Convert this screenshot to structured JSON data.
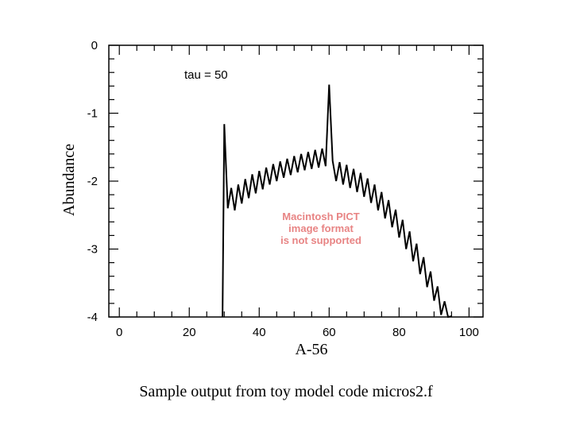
{
  "chart_data": {
    "type": "line",
    "title": "",
    "xlabel": "A-56",
    "ylabel": "Abundance",
    "xlim": [
      -3,
      104
    ],
    "ylim": [
      -4,
      0
    ],
    "x_ticks": [
      0,
      20,
      40,
      60,
      80,
      100
    ],
    "y_ticks": [
      0,
      -1,
      -2,
      -3,
      -4
    ],
    "grid": false,
    "annotation": "tau = 50",
    "series": [
      {
        "color": "#000000",
        "x": [
          29.5,
          30,
          31,
          32,
          33,
          34,
          35,
          36,
          37,
          38,
          39,
          40,
          41,
          42,
          43,
          44,
          45,
          46,
          47,
          48,
          49,
          50,
          51,
          52,
          53,
          54,
          55,
          56,
          57,
          58,
          59,
          60,
          61,
          62,
          63,
          64,
          65,
          66,
          67,
          68,
          69,
          70,
          71,
          72,
          73,
          74,
          75,
          76,
          77,
          78,
          79,
          80,
          81,
          82,
          83,
          84,
          85,
          86,
          87,
          88,
          89,
          90,
          91,
          92,
          93,
          94,
          95
        ],
        "y": [
          -4.0,
          -1.16,
          -2.4,
          -2.1,
          -2.43,
          -2.05,
          -2.33,
          -1.97,
          -2.25,
          -1.9,
          -2.18,
          -1.85,
          -2.12,
          -1.8,
          -2.05,
          -1.75,
          -2.0,
          -1.71,
          -1.95,
          -1.67,
          -1.91,
          -1.63,
          -1.87,
          -1.6,
          -1.84,
          -1.57,
          -1.82,
          -1.54,
          -1.8,
          -1.52,
          -1.78,
          -0.58,
          -1.7,
          -2.0,
          -1.72,
          -2.05,
          -1.76,
          -2.1,
          -1.82,
          -2.16,
          -1.88,
          -2.23,
          -1.96,
          -2.32,
          -2.05,
          -2.43,
          -2.16,
          -2.55,
          -2.28,
          -2.68,
          -2.42,
          -2.83,
          -2.57,
          -3.0,
          -2.74,
          -3.18,
          -2.92,
          -3.37,
          -3.12,
          -3.56,
          -3.33,
          -3.76,
          -3.55,
          -3.97,
          -3.77,
          -4.0,
          -3.99
        ]
      }
    ]
  },
  "page": {
    "watermark_lines": [
      "Macintosh PICT",
      "image format",
      "is not supported"
    ],
    "caption": "Sample output from toy model code micros2.f"
  }
}
